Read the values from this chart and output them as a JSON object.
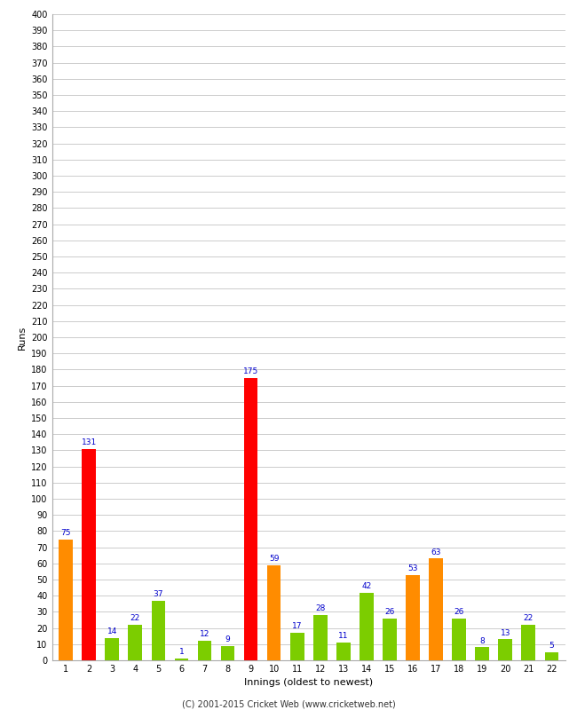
{
  "title": "",
  "xlabel": "Innings (oldest to newest)",
  "ylabel": "Runs",
  "categories": [
    1,
    2,
    3,
    4,
    5,
    6,
    7,
    8,
    9,
    10,
    11,
    12,
    13,
    14,
    15,
    16,
    17,
    18,
    19,
    20,
    21,
    22
  ],
  "values": [
    75,
    131,
    14,
    22,
    37,
    1,
    12,
    9,
    175,
    59,
    17,
    28,
    11,
    42,
    26,
    53,
    63,
    26,
    8,
    13,
    22,
    5
  ],
  "bar_colors": [
    "#ff8c00",
    "#ff0000",
    "#7ccd00",
    "#7ccd00",
    "#7ccd00",
    "#7ccd00",
    "#7ccd00",
    "#7ccd00",
    "#ff0000",
    "#ff8c00",
    "#7ccd00",
    "#7ccd00",
    "#7ccd00",
    "#7ccd00",
    "#7ccd00",
    "#ff8c00",
    "#ff8c00",
    "#7ccd00",
    "#7ccd00",
    "#7ccd00",
    "#7ccd00",
    "#7ccd00"
  ],
  "label_color": "#0000cc",
  "ylim": [
    0,
    400
  ],
  "ytick_step": 10,
  "grid_color": "#cccccc",
  "background_color": "#ffffff",
  "footer": "(C) 2001-2015 Cricket Web (www.cricketweb.net)",
  "label_fontsize": 8,
  "tick_fontsize": 7,
  "value_label_fontsize": 6.5,
  "footer_fontsize": 7,
  "bar_width": 0.6
}
